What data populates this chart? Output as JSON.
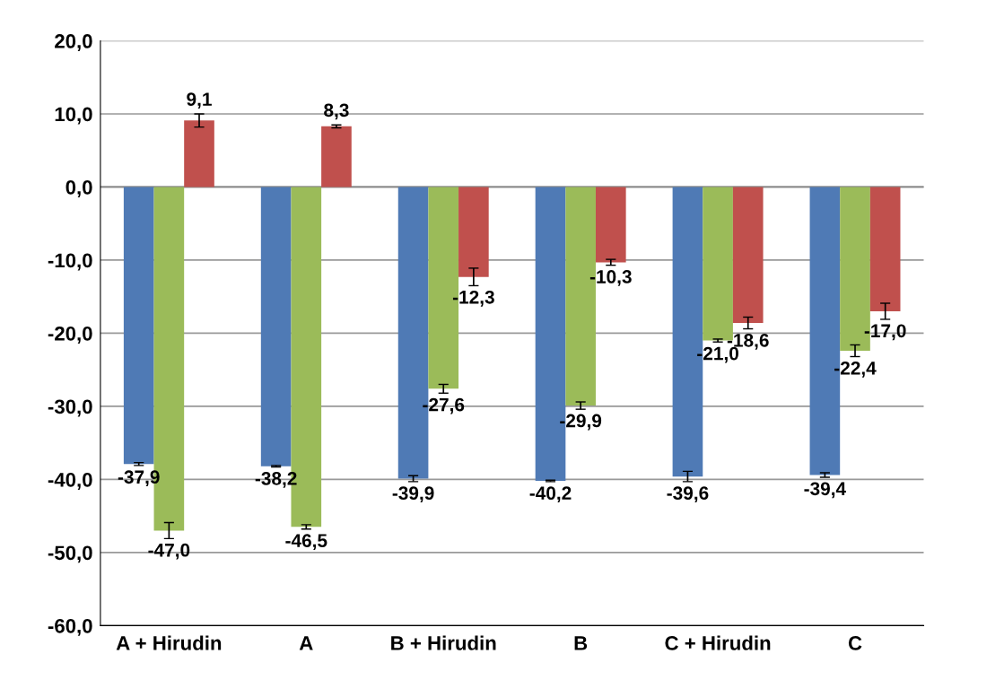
{
  "chart_data": {
    "type": "bar",
    "categories": [
      "A + Hirudin",
      "A",
      "B + Hirudin",
      "B",
      "C + Hirudin",
      "C"
    ],
    "series": [
      {
        "color": "#4f7ab5",
        "values": [
          -37.9,
          -38.2,
          -39.9,
          -40.2,
          -39.6,
          -39.4
        ],
        "errors": [
          0.2,
          0.1,
          0.4,
          0.1,
          0.7,
          0.3
        ],
        "value_labels": [
          "-37,9",
          "-38,2",
          "-39,9",
          "-40,2",
          "-39,6",
          "-39,4"
        ]
      },
      {
        "color": "#9bbb59",
        "values": [
          -47.0,
          -46.5,
          -27.6,
          -29.9,
          -21.0,
          -22.4
        ],
        "errors": [
          1.1,
          0.3,
          0.6,
          0.5,
          0.2,
          0.8
        ],
        "value_labels": [
          "-47,0",
          "-46,5",
          "-27,6",
          "-29,9",
          "-21,0",
          "-22,4"
        ]
      },
      {
        "color": "#c0504d",
        "values": [
          9.1,
          8.3,
          -12.3,
          -10.3,
          -18.6,
          -17.0
        ],
        "errors": [
          0.9,
          0.2,
          1.2,
          0.4,
          0.8,
          1.1
        ],
        "value_labels": [
          "9,1",
          "8,3",
          "-12,3",
          "-10,3",
          "-18,6",
          "-17,0"
        ]
      }
    ],
    "ylim": [
      -60,
      20
    ],
    "yticks": [
      {
        "value": -60,
        "label": "-60,0"
      },
      {
        "value": -50,
        "label": "-50,0"
      },
      {
        "value": -40,
        "label": "-40,0"
      },
      {
        "value": -30,
        "label": "-30,0"
      },
      {
        "value": -20,
        "label": "-20,0"
      },
      {
        "value": -10,
        "label": "-10,0"
      },
      {
        "value": 0,
        "label": "0,0"
      },
      {
        "value": 10,
        "label": "10,0"
      },
      {
        "value": 20,
        "label": "20,0"
      }
    ],
    "grid": "y",
    "legend": false
  }
}
